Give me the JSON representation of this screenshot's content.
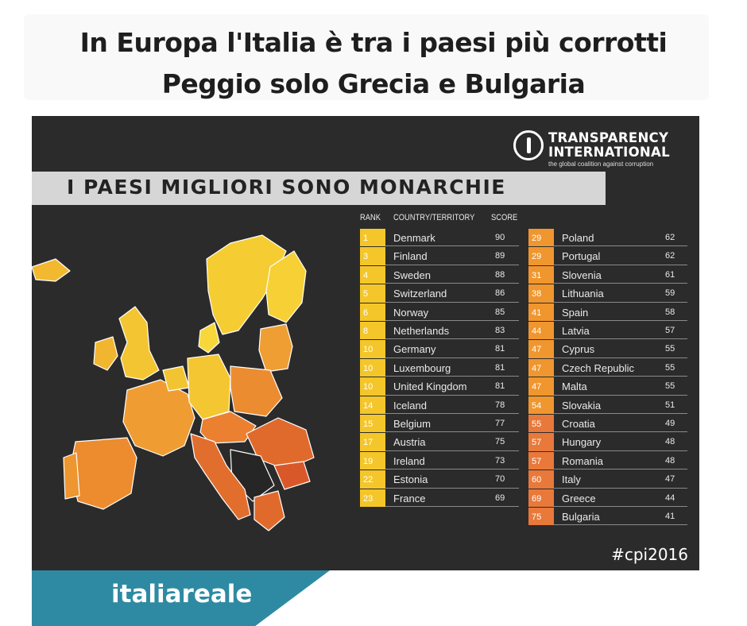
{
  "title_line1": "In Europa l'Italia è tra i paesi più corrotti",
  "title_line2": "Peggio solo Grecia e Bulgaria",
  "logo": {
    "line1": "TRANSPARENCY",
    "line2": "INTERNATIONAL",
    "tagline": "the global coalition against corruption"
  },
  "banner": "I PAESI MIGLIORI SONO MONARCHIE",
  "hashtag": "#cpi2016",
  "footer": "italiareale",
  "colors": {
    "background": "#2b2b2b",
    "banner": "#d6d6d6",
    "footer": "#2e8aa2",
    "rank_top": "#f4c62a",
    "rank_mid": "#f0962e",
    "rank_low": "#e8793a"
  },
  "chart_data": {
    "type": "table",
    "columns": [
      "RANK",
      "COUNTRY/TERRITORY",
      "SCORE"
    ],
    "rows": [
      [
        "1",
        "Denmark",
        "90"
      ],
      [
        "3",
        "Finland",
        "89"
      ],
      [
        "4",
        "Sweden",
        "88"
      ],
      [
        "5",
        "Switzerland",
        "86"
      ],
      [
        "6",
        "Norway",
        "85"
      ],
      [
        "8",
        "Netherlands",
        "83"
      ],
      [
        "10",
        "Germany",
        "81"
      ],
      [
        "10",
        "Luxembourg",
        "81"
      ],
      [
        "10",
        "United Kingdom",
        "81"
      ],
      [
        "14",
        "Iceland",
        "78"
      ],
      [
        "15",
        "Belgium",
        "77"
      ],
      [
        "17",
        "Austria",
        "75"
      ],
      [
        "19",
        "Ireland",
        "73"
      ],
      [
        "22",
        "Estonia",
        "70"
      ],
      [
        "23",
        "France",
        "69"
      ],
      [
        "29",
        "Poland",
        "62"
      ],
      [
        "29",
        "Portugal",
        "62"
      ],
      [
        "31",
        "Slovenia",
        "61"
      ],
      [
        "38",
        "Lithuania",
        "59"
      ],
      [
        "41",
        "Spain",
        "58"
      ],
      [
        "44",
        "Latvia",
        "57"
      ],
      [
        "47",
        "Cyprus",
        "55"
      ],
      [
        "47",
        "Czech Republic",
        "55"
      ],
      [
        "47",
        "Malta",
        "55"
      ],
      [
        "54",
        "Slovakia",
        "51"
      ],
      [
        "55",
        "Croatia",
        "49"
      ],
      [
        "57",
        "Hungary",
        "48"
      ],
      [
        "57",
        "Romania",
        "48"
      ],
      [
        "60",
        "Italy",
        "47"
      ],
      [
        "69",
        "Greece",
        "44"
      ],
      [
        "75",
        "Bulgaria",
        "41"
      ]
    ]
  }
}
